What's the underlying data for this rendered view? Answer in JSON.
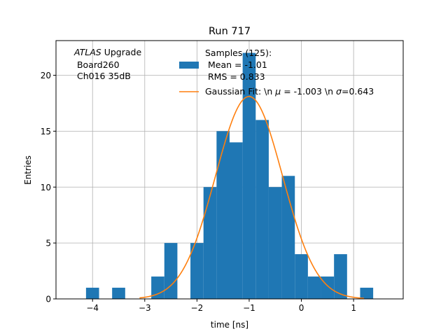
{
  "chart_data": {
    "type": "bar",
    "title": "Run 717",
    "xlabel": "time [ns]",
    "ylabel": "Entries",
    "xlim": [
      -4.7,
      1.95
    ],
    "ylim": [
      0,
      23.1
    ],
    "grid": true,
    "xticks": [
      -4,
      -3,
      -2,
      -1,
      0,
      1
    ],
    "yticks": [
      0,
      5,
      10,
      15,
      20
    ],
    "xtick_labels": [
      "−4",
      "−3",
      "−2",
      "−1",
      "0",
      "1"
    ],
    "ytick_labels": [
      "0",
      "5",
      "10",
      "15",
      "20"
    ],
    "annotation": {
      "italic": "ATLAS",
      "line1_rest": " Upgrade",
      "line2": " Board260",
      "line3": " Ch016 35dB"
    },
    "legend": {
      "placement": "top-right",
      "histogram": {
        "line1": "Samples (125):",
        "line2": " Mean = -1.01",
        "line3": " RMS = 0.833",
        "color": "#1f77b4"
      },
      "fit": {
        "label_prefix": "Gaussian Fit: \\n ",
        "mu_symbol": "μ",
        "mu_value": " = -1.003 \\n ",
        "sigma_symbol": "σ",
        "sigma_value": "=0.643",
        "color": "#ff7f0e"
      }
    },
    "bin_width": 0.25,
    "bins": [
      {
        "x0": -4.125,
        "count": 1
      },
      {
        "x0": -3.875,
        "count": 0
      },
      {
        "x0": -3.625,
        "count": 1
      },
      {
        "x0": -3.375,
        "count": 0
      },
      {
        "x0": -3.125,
        "count": 0
      },
      {
        "x0": -2.875,
        "count": 2
      },
      {
        "x0": -2.625,
        "count": 5
      },
      {
        "x0": -2.375,
        "count": 0
      },
      {
        "x0": -2.125,
        "count": 5
      },
      {
        "x0": -1.875,
        "count": 10
      },
      {
        "x0": -1.625,
        "count": 15
      },
      {
        "x0": -1.375,
        "count": 14
      },
      {
        "x0": -1.125,
        "count": 22
      },
      {
        "x0": -0.875,
        "count": 16
      },
      {
        "x0": -0.625,
        "count": 10
      },
      {
        "x0": -0.375,
        "count": 11
      },
      {
        "x0": -0.125,
        "count": 4
      },
      {
        "x0": 0.125,
        "count": 2
      },
      {
        "x0": 0.375,
        "count": 2
      },
      {
        "x0": 0.625,
        "count": 4
      },
      {
        "x0": 0.875,
        "count": 0
      },
      {
        "x0": 1.125,
        "count": 1
      }
    ],
    "fit": {
      "amplitude": 18.1,
      "mu": -1.003,
      "sigma": 0.643,
      "x_range": [
        -3.1,
        1.2
      ]
    }
  }
}
